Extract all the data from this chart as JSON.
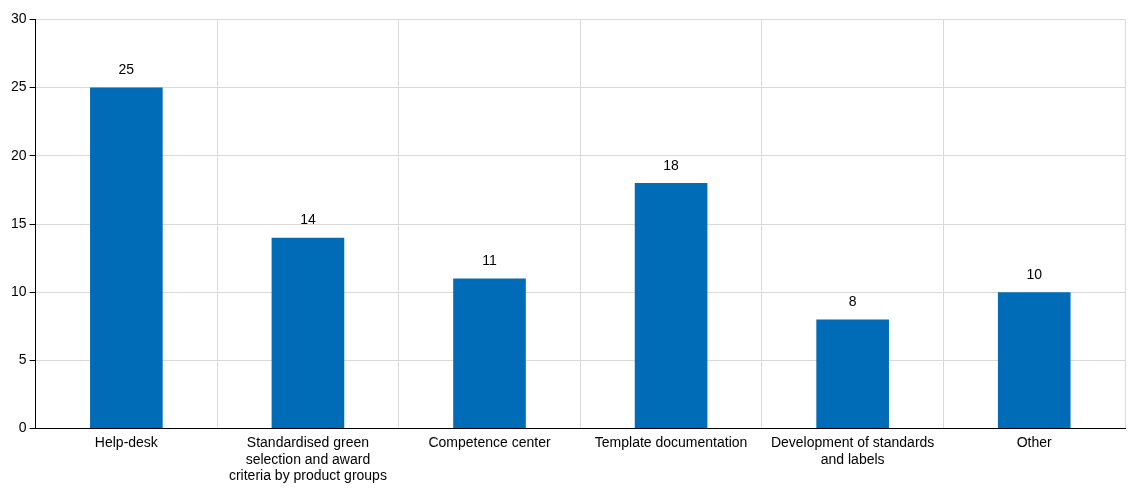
{
  "chart_data": {
    "type": "bar",
    "categories": [
      "Help-desk",
      "Standardised green selection and award criteria by product groups",
      "Competence center",
      "Template documentation",
      "Development of standards and labels",
      "Other"
    ],
    "values": [
      25,
      14,
      11,
      18,
      8,
      10
    ],
    "color": "#006bb6",
    "ylim": [
      0,
      30
    ],
    "yticks": [
      0,
      5,
      10,
      15,
      20,
      25,
      30
    ],
    "grid": true,
    "data_labels": true
  }
}
